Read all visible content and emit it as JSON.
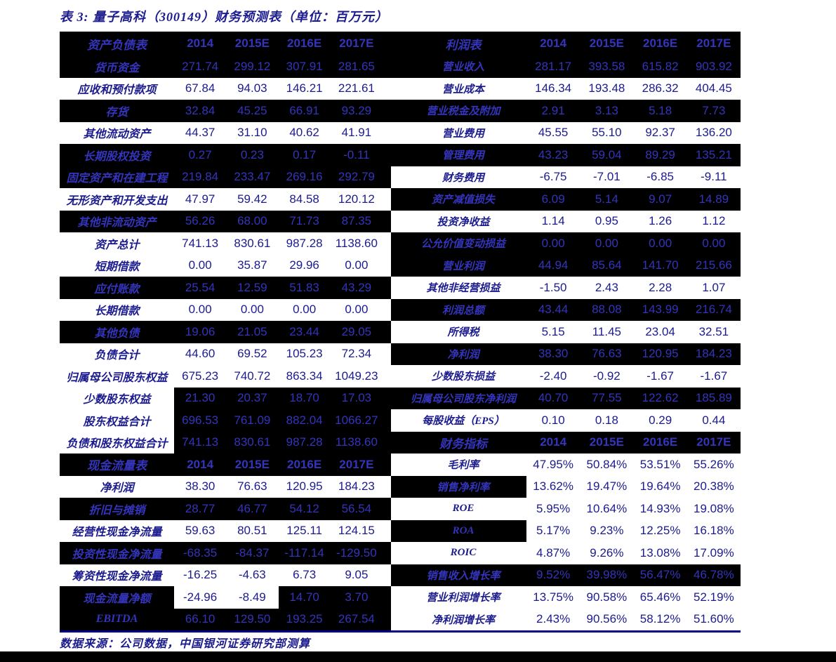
{
  "title": "表 3:  量子高科（300149）财务预测表（单位：百万元）",
  "footer": "数据来源：公司数据，中国银河证券研究部测算",
  "columns": [
    "2014",
    "2015E",
    "2016E",
    "2017E"
  ],
  "colors": {
    "navy_text": "#1b1b8e",
    "navy_text_on_dark": "#3434bc",
    "dark_row_bg": "#000000",
    "rule_line": "#00008b",
    "bottom_band": "#000000"
  },
  "rows": [
    {
      "left": {
        "type": "header",
        "label": "资产负债表",
        "bg": "dark",
        "rule_top": true,
        "rule_bottom": true
      },
      "right": {
        "type": "header",
        "label": "利润表",
        "bg": "dark",
        "rule_top": true,
        "rule_bottom": true
      }
    },
    {
      "left": {
        "label": "货币资金",
        "values": [
          "271.74",
          "299.12",
          "307.91",
          "281.65"
        ],
        "bg": "dark"
      },
      "right": {
        "label": "营业收入",
        "values": [
          "281.17",
          "393.58",
          "615.82",
          "903.92"
        ],
        "bg": "dark"
      }
    },
    {
      "left": {
        "label": "应收和预付款项",
        "values": [
          "67.84",
          "94.03",
          "146.21",
          "221.61"
        ],
        "bg": "light"
      },
      "right": {
        "label": "营业成本",
        "values": [
          "146.34",
          "193.48",
          "286.32",
          "404.45"
        ],
        "bg": "light"
      }
    },
    {
      "left": {
        "label": "存货",
        "values": [
          "32.84",
          "45.25",
          "66.91",
          "93.29"
        ],
        "bg": "dark"
      },
      "right": {
        "label": "营业税金及附加",
        "values": [
          "2.91",
          "3.13",
          "5.18",
          "7.73"
        ],
        "bg": "dark"
      }
    },
    {
      "left": {
        "label": "其他流动资产",
        "values": [
          "44.37",
          "31.10",
          "40.62",
          "41.91"
        ],
        "bg": "light"
      },
      "right": {
        "label": "营业费用",
        "values": [
          "45.55",
          "55.10",
          "92.37",
          "136.20"
        ],
        "bg": "light"
      }
    },
    {
      "left": {
        "label": "长期股权投资",
        "values": [
          "0.27",
          "0.23",
          "0.17",
          "-0.11"
        ],
        "bg": "dark"
      },
      "right": {
        "label": "管理费用",
        "values": [
          "43.23",
          "59.04",
          "89.29",
          "135.21"
        ],
        "bg": "dark"
      }
    },
    {
      "left": {
        "label": "固定资产和在建工程",
        "values": [
          "219.84",
          "233.47",
          "269.16",
          "292.79"
        ],
        "bg": "dark"
      },
      "right": {
        "label": "财务费用",
        "values": [
          "-6.75",
          "-7.01",
          "-6.85",
          "-9.11"
        ],
        "bg": "light"
      }
    },
    {
      "left": {
        "label": "无形资产和开发支出",
        "values": [
          "47.97",
          "59.42",
          "84.58",
          "120.12"
        ],
        "bg": "light"
      },
      "right": {
        "label": "资产减值损失",
        "values": [
          "6.09",
          "5.14",
          "9.07",
          "14.89"
        ],
        "bg": "dark"
      }
    },
    {
      "left": {
        "label": "其他非流动资产",
        "values": [
          "56.26",
          "68.00",
          "71.73",
          "87.35"
        ],
        "bg": "dark"
      },
      "right": {
        "label": "投资净收益",
        "values": [
          "1.14",
          "0.95",
          "1.26",
          "1.12"
        ],
        "bg": "light"
      }
    },
    {
      "left": {
        "label": "资产总计",
        "values": [
          "741.13",
          "830.61",
          "987.28",
          "1138.60"
        ],
        "bg": "light"
      },
      "right": {
        "label": "公允价值变动损益",
        "values": [
          "0.00",
          "0.00",
          "0.00",
          "0.00"
        ],
        "bg": "dark"
      }
    },
    {
      "left": {
        "label": "短期借款",
        "values": [
          "0.00",
          "35.87",
          "29.96",
          "0.00"
        ],
        "bg": "light"
      },
      "right": {
        "label": "营业利润",
        "values": [
          "44.94",
          "85.64",
          "141.70",
          "215.66"
        ],
        "bg": "dark"
      }
    },
    {
      "left": {
        "label": "应付账款",
        "values": [
          "25.54",
          "12.59",
          "51.83",
          "43.29"
        ],
        "bg": "dark"
      },
      "right": {
        "label": "其他非经营损益",
        "values": [
          "-1.50",
          "2.43",
          "2.28",
          "1.07"
        ],
        "bg": "light"
      }
    },
    {
      "left": {
        "label": "长期借款",
        "values": [
          "0.00",
          "0.00",
          "0.00",
          "0.00"
        ],
        "bg": "light"
      },
      "right": {
        "label": "利润总额",
        "values": [
          "43.44",
          "88.08",
          "143.99",
          "216.74"
        ],
        "bg": "dark"
      }
    },
    {
      "left": {
        "label": "其他负债",
        "values": [
          "19.06",
          "21.05",
          "23.44",
          "29.05"
        ],
        "bg": "dark"
      },
      "right": {
        "label": "所得税",
        "values": [
          "5.15",
          "11.45",
          "23.04",
          "32.51"
        ],
        "bg": "light"
      }
    },
    {
      "left": {
        "label": "负债合计",
        "values": [
          "44.60",
          "69.52",
          "105.23",
          "72.34"
        ],
        "bg": "light"
      },
      "right": {
        "label": "净利润",
        "values": [
          "38.30",
          "76.63",
          "120.95",
          "184.23"
        ],
        "bg": "dark"
      }
    },
    {
      "left": {
        "label": "归属母公司股东权益",
        "values": [
          "675.23",
          "740.72",
          "863.34",
          "1049.23"
        ],
        "bg": "light"
      },
      "right": {
        "label": "少数股东损益",
        "values": [
          "-2.40",
          "-0.92",
          "-1.67",
          "-1.67"
        ],
        "bg": "light"
      }
    },
    {
      "left": {
        "label": "少数股东权益",
        "values": [
          "21.30",
          "20.37",
          "18.70",
          "17.03"
        ],
        "bg": "values-dark"
      },
      "right": {
        "label": "归属母公司股东净利润",
        "values": [
          "40.70",
          "77.55",
          "122.62",
          "185.89"
        ],
        "bg": "dark"
      }
    },
    {
      "left": {
        "label": "股东权益合计",
        "values": [
          "696.53",
          "761.09",
          "882.04",
          "1066.27"
        ],
        "bg": "values-dark"
      },
      "right": {
        "label": "每股收益（EPS）",
        "values": [
          "0.10",
          "0.18",
          "0.29",
          "0.44"
        ],
        "bg": "light"
      }
    },
    {
      "left": {
        "label": "负债和股东权益合计",
        "values": [
          "741.13",
          "830.61",
          "987.28",
          "1138.60"
        ],
        "bg": "values-dark"
      },
      "right": {
        "type": "header",
        "label": "财务指标",
        "bg": "dark",
        "rule_top": true,
        "rule_bottom": true
      }
    },
    {
      "left": {
        "type": "header",
        "label": "现金流量表",
        "bg": "dark",
        "rule_top": true,
        "rule_bottom": true
      },
      "right": {
        "label": "毛利率",
        "values": [
          "47.95%",
          "50.84%",
          "53.51%",
          "55.26%"
        ],
        "bg": "light"
      }
    },
    {
      "left": {
        "label": "净利润",
        "values": [
          "38.30",
          "76.63",
          "120.95",
          "184.23"
        ],
        "bg": "light"
      },
      "right": {
        "label": "销售净利率",
        "values": [
          "13.62%",
          "19.47%",
          "19.64%",
          "20.38%"
        ],
        "bg": "label-dark"
      }
    },
    {
      "left": {
        "label": "折旧与摊销",
        "values": [
          "28.77",
          "46.77",
          "54.12",
          "56.54"
        ],
        "bg": "dark"
      },
      "right": {
        "label": "ROE",
        "values": [
          "5.95%",
          "10.64%",
          "14.93%",
          "19.08%"
        ],
        "bg": "light"
      }
    },
    {
      "left": {
        "label": "经营性现金净流量",
        "values": [
          "59.63",
          "80.51",
          "125.11",
          "124.15"
        ],
        "bg": "light"
      },
      "right": {
        "label": "ROA",
        "values": [
          "5.17%",
          "9.23%",
          "12.25%",
          "16.18%"
        ],
        "bg": "label-dark"
      }
    },
    {
      "left": {
        "label": "投资性现金净流量",
        "values": [
          "-68.35",
          "-84.37",
          "-117.14",
          "-129.50"
        ],
        "bg": "dark"
      },
      "right": {
        "label": "ROIC",
        "values": [
          "4.87%",
          "9.26%",
          "13.08%",
          "17.09%"
        ],
        "bg": "light"
      }
    },
    {
      "left": {
        "label": "筹资性现金净流量",
        "values": [
          "-16.25",
          "-4.63",
          "6.73",
          "9.05"
        ],
        "bg": "light"
      },
      "right": {
        "label": "销售收入增长率",
        "values": [
          "9.52%",
          "39.98%",
          "56.47%",
          "46.78%"
        ],
        "bg": "dark"
      }
    },
    {
      "left": {
        "label": "现金流量净额",
        "values": [
          "-24.96",
          "-8.49",
          "14.70",
          "3.70"
        ],
        "bg": "net-split"
      },
      "right": {
        "label": "营业利润增长率",
        "values": [
          "13.75%",
          "90.58%",
          "65.46%",
          "52.19%"
        ],
        "bg": "light"
      }
    },
    {
      "left": {
        "label": "EBITDA",
        "values": [
          "66.10",
          "129.50",
          "193.25",
          "267.54"
        ],
        "bg": "dark"
      },
      "right": {
        "label": "净利润增长率",
        "values": [
          "2.43%",
          "90.56%",
          "58.12%",
          "51.60%"
        ],
        "bg": "light"
      }
    }
  ]
}
